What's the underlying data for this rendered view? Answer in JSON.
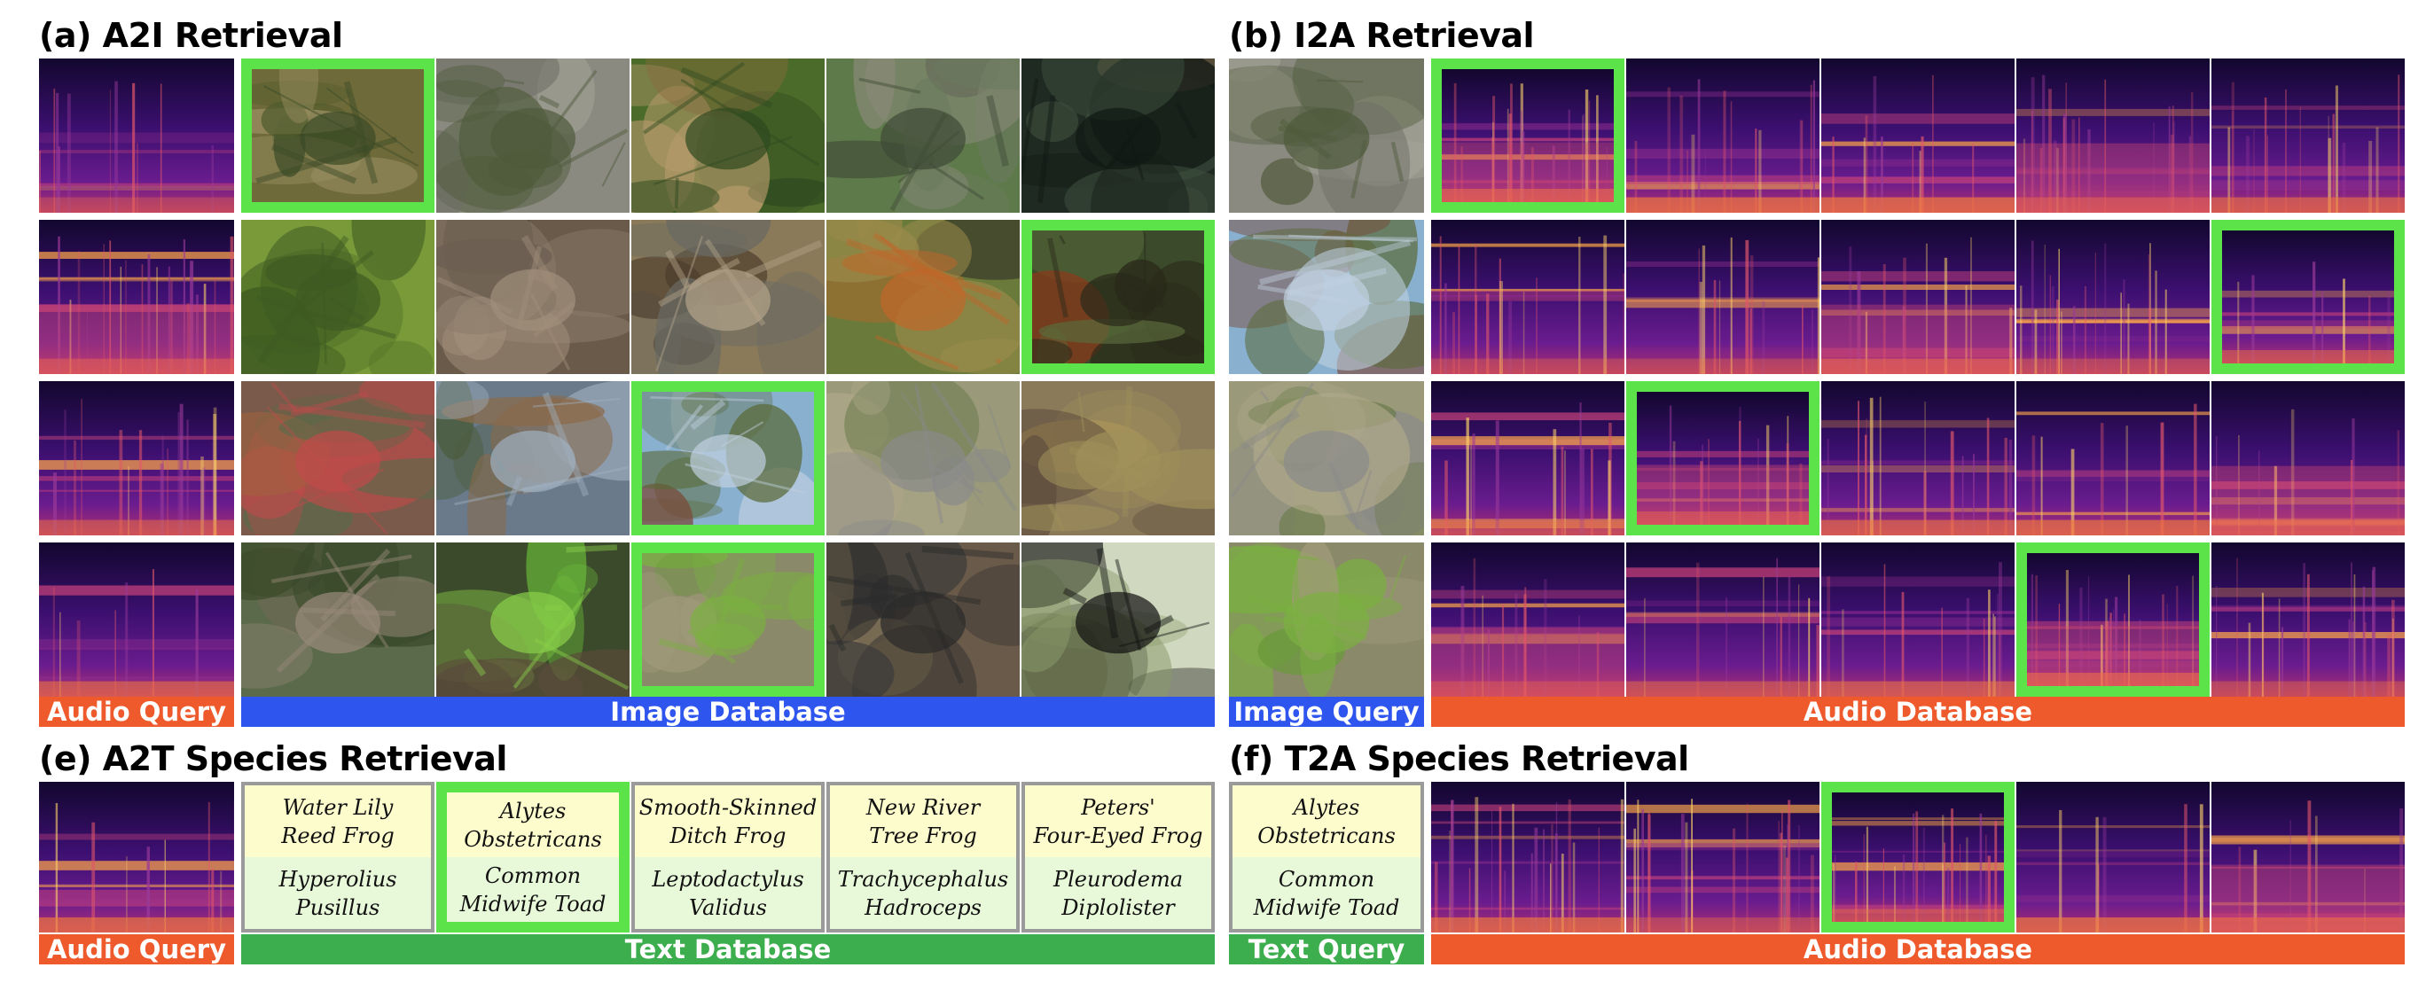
{
  "panels": {
    "a": {
      "title": "(a) A2I Retrieval",
      "query_label": "Audio Query",
      "database_label": "Image Database"
    },
    "b": {
      "title": "(b) I2A Retrieval",
      "query_label": "Image Query",
      "database_label": "Audio Database"
    },
    "e": {
      "title": "(e) A2T Species Retrieval",
      "query_label": "Audio Query",
      "database_label": "Text Database"
    },
    "f": {
      "title": "(f) T2A Species Retrieval",
      "query_label": "Text Query",
      "database_label": "Audio Database"
    }
  },
  "a2t_cards": [
    {
      "common": "Water Lily\nReed Frog",
      "scientific": "Hyperolius\nPusillus"
    },
    {
      "common": "Alytes\nObstetricans",
      "scientific": "Common\nMidwife Toad"
    },
    {
      "common": "Smooth-Skinned\nDitch Frog",
      "scientific": "Leptodactylus\nValidus"
    },
    {
      "common": "New River\nTree Frog",
      "scientific": "Trachycephalus\nHadroceps"
    },
    {
      "common": "Peters'\nFour-Eyed Frog",
      "scientific": "Pleurodema\nDiplolister"
    }
  ],
  "t2a_query": {
    "common": "Alytes\nObstetricans",
    "scientific": "Common\nMidwife Toad"
  },
  "colors": {
    "highlight": "#5de34a",
    "audio_bar": "#ee5a2b",
    "image_bar": "#2f55ef",
    "text_bar": "#3dae4e"
  },
  "images": {
    "a2i": [
      [
        "toad-on-leaves",
        "lizard-on-rocks",
        "brown-frog-on-moss",
        "gray-toad-in-grass",
        "frog-by-water"
      ],
      [
        "green-grasshopper",
        "camouflaged-gecko-on-bark",
        "spotted-gecko-on-wood",
        "american-robin",
        "red-howler-monkey"
      ],
      [
        "house-finch",
        "robin-on-branch",
        "waxbill-on-branch",
        "dove-on-grass",
        "bird-on-wooden-board"
      ],
      [
        "squirrel-on-branch",
        "green-tree-frog",
        "green-katydid",
        "black-cricket-on-leaves",
        "black-howler-monkey"
      ]
    ],
    "i2a_queries": [
      "toad-on-gravel",
      "cicada-on-bark",
      "waxbill-on-twig",
      "wild-boar-piglet"
    ]
  }
}
